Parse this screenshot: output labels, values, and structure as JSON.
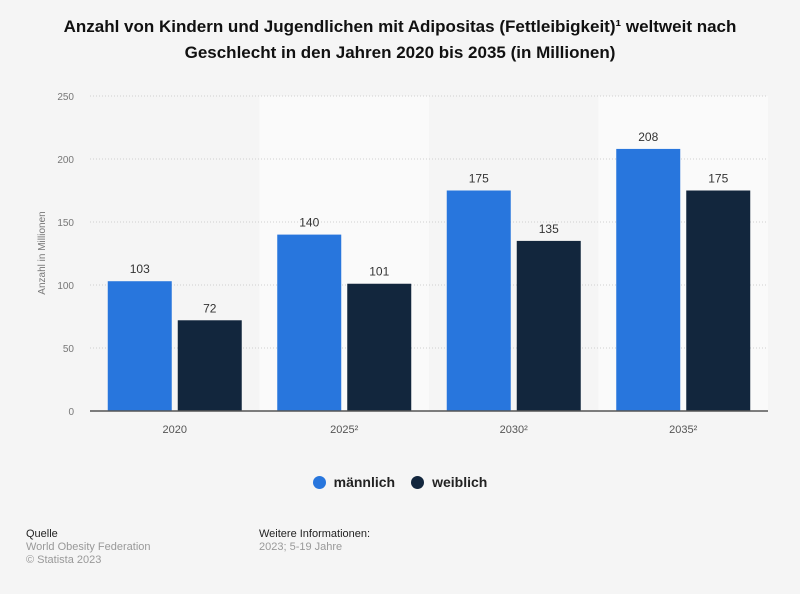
{
  "title": "Anzahl von Kindern und Jugendlichen mit Adipositas (Fettleibigkeit)¹ weltweit nach Geschlecht in den Jahren 2020 bis 2035 (in Millionen)",
  "chart_data": {
    "type": "bar",
    "title": "Anzahl von Kindern und Jugendlichen mit Adipositas (Fettleibigkeit)¹ weltweit nach Geschlecht in den Jahren 2020 bis 2035 (in Millionen)",
    "categories": [
      "2020",
      "2025²",
      "2030²",
      "2035²"
    ],
    "series": [
      {
        "name": "männlich",
        "values": [
          103,
          140,
          175,
          208
        ],
        "color": "#2876dd"
      },
      {
        "name": "weiblich",
        "values": [
          72,
          101,
          135,
          175
        ],
        "color": "#12263d"
      }
    ],
    "xlabel": "",
    "ylabel": "Anzahl in Millionen",
    "ylim": [
      0,
      250
    ],
    "yticks": [
      0,
      50,
      100,
      150,
      200,
      250
    ],
    "grid": true,
    "legend": "bottom",
    "data_labels": true
  },
  "footer": {
    "source_heading": "Quelle",
    "source": "World Obesity Federation",
    "copyright": "© Statista 2023",
    "info_heading": "Weitere Informationen:",
    "info": "2023; 5-19 Jahre"
  }
}
